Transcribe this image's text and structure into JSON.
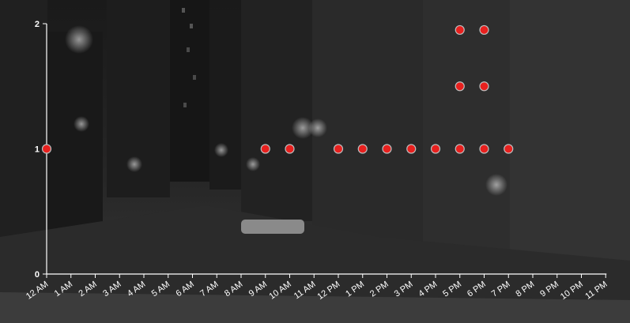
{
  "chart_data": {
    "type": "scatter",
    "title": "",
    "xlabel": "",
    "ylabel": "",
    "x_categories": [
      "12 AM",
      "1 AM",
      "2 AM",
      "3 AM",
      "4 AM",
      "5 AM",
      "6 AM",
      "7 AM",
      "8 AM",
      "9 AM",
      "10 AM",
      "11 AM",
      "12 PM",
      "1 PM",
      "2 PM",
      "3 PM",
      "4 PM",
      "5 PM",
      "6 PM",
      "7 PM",
      "8 PM",
      "9 PM",
      "10 PM",
      "11 PM"
    ],
    "y_ticks": [
      0,
      1,
      2
    ],
    "ylim": [
      0,
      2
    ],
    "grid": false,
    "points": [
      {
        "x": "12 AM",
        "y": 1
      },
      {
        "x": "9 AM",
        "y": 1
      },
      {
        "x": "10 AM",
        "y": 1
      },
      {
        "x": "12 PM",
        "y": 1
      },
      {
        "x": "1 PM",
        "y": 1
      },
      {
        "x": "2 PM",
        "y": 1
      },
      {
        "x": "3 PM",
        "y": 1
      },
      {
        "x": "4 PM",
        "y": 1
      },
      {
        "x": "5 PM",
        "y": 1
      },
      {
        "x": "5 PM",
        "y": 1.5
      },
      {
        "x": "5 PM",
        "y": 1.95
      },
      {
        "x": "6 PM",
        "y": 1
      },
      {
        "x": "6 PM",
        "y": 1.5
      },
      {
        "x": "6 PM",
        "y": 1.95
      },
      {
        "x": "7 PM",
        "y": 1
      }
    ],
    "colors": {
      "point_fill": "#e8201e",
      "point_stroke": "#bdbdbd",
      "axis": "#ffffff"
    },
    "background": "dark city street at night, grayscale photo"
  }
}
